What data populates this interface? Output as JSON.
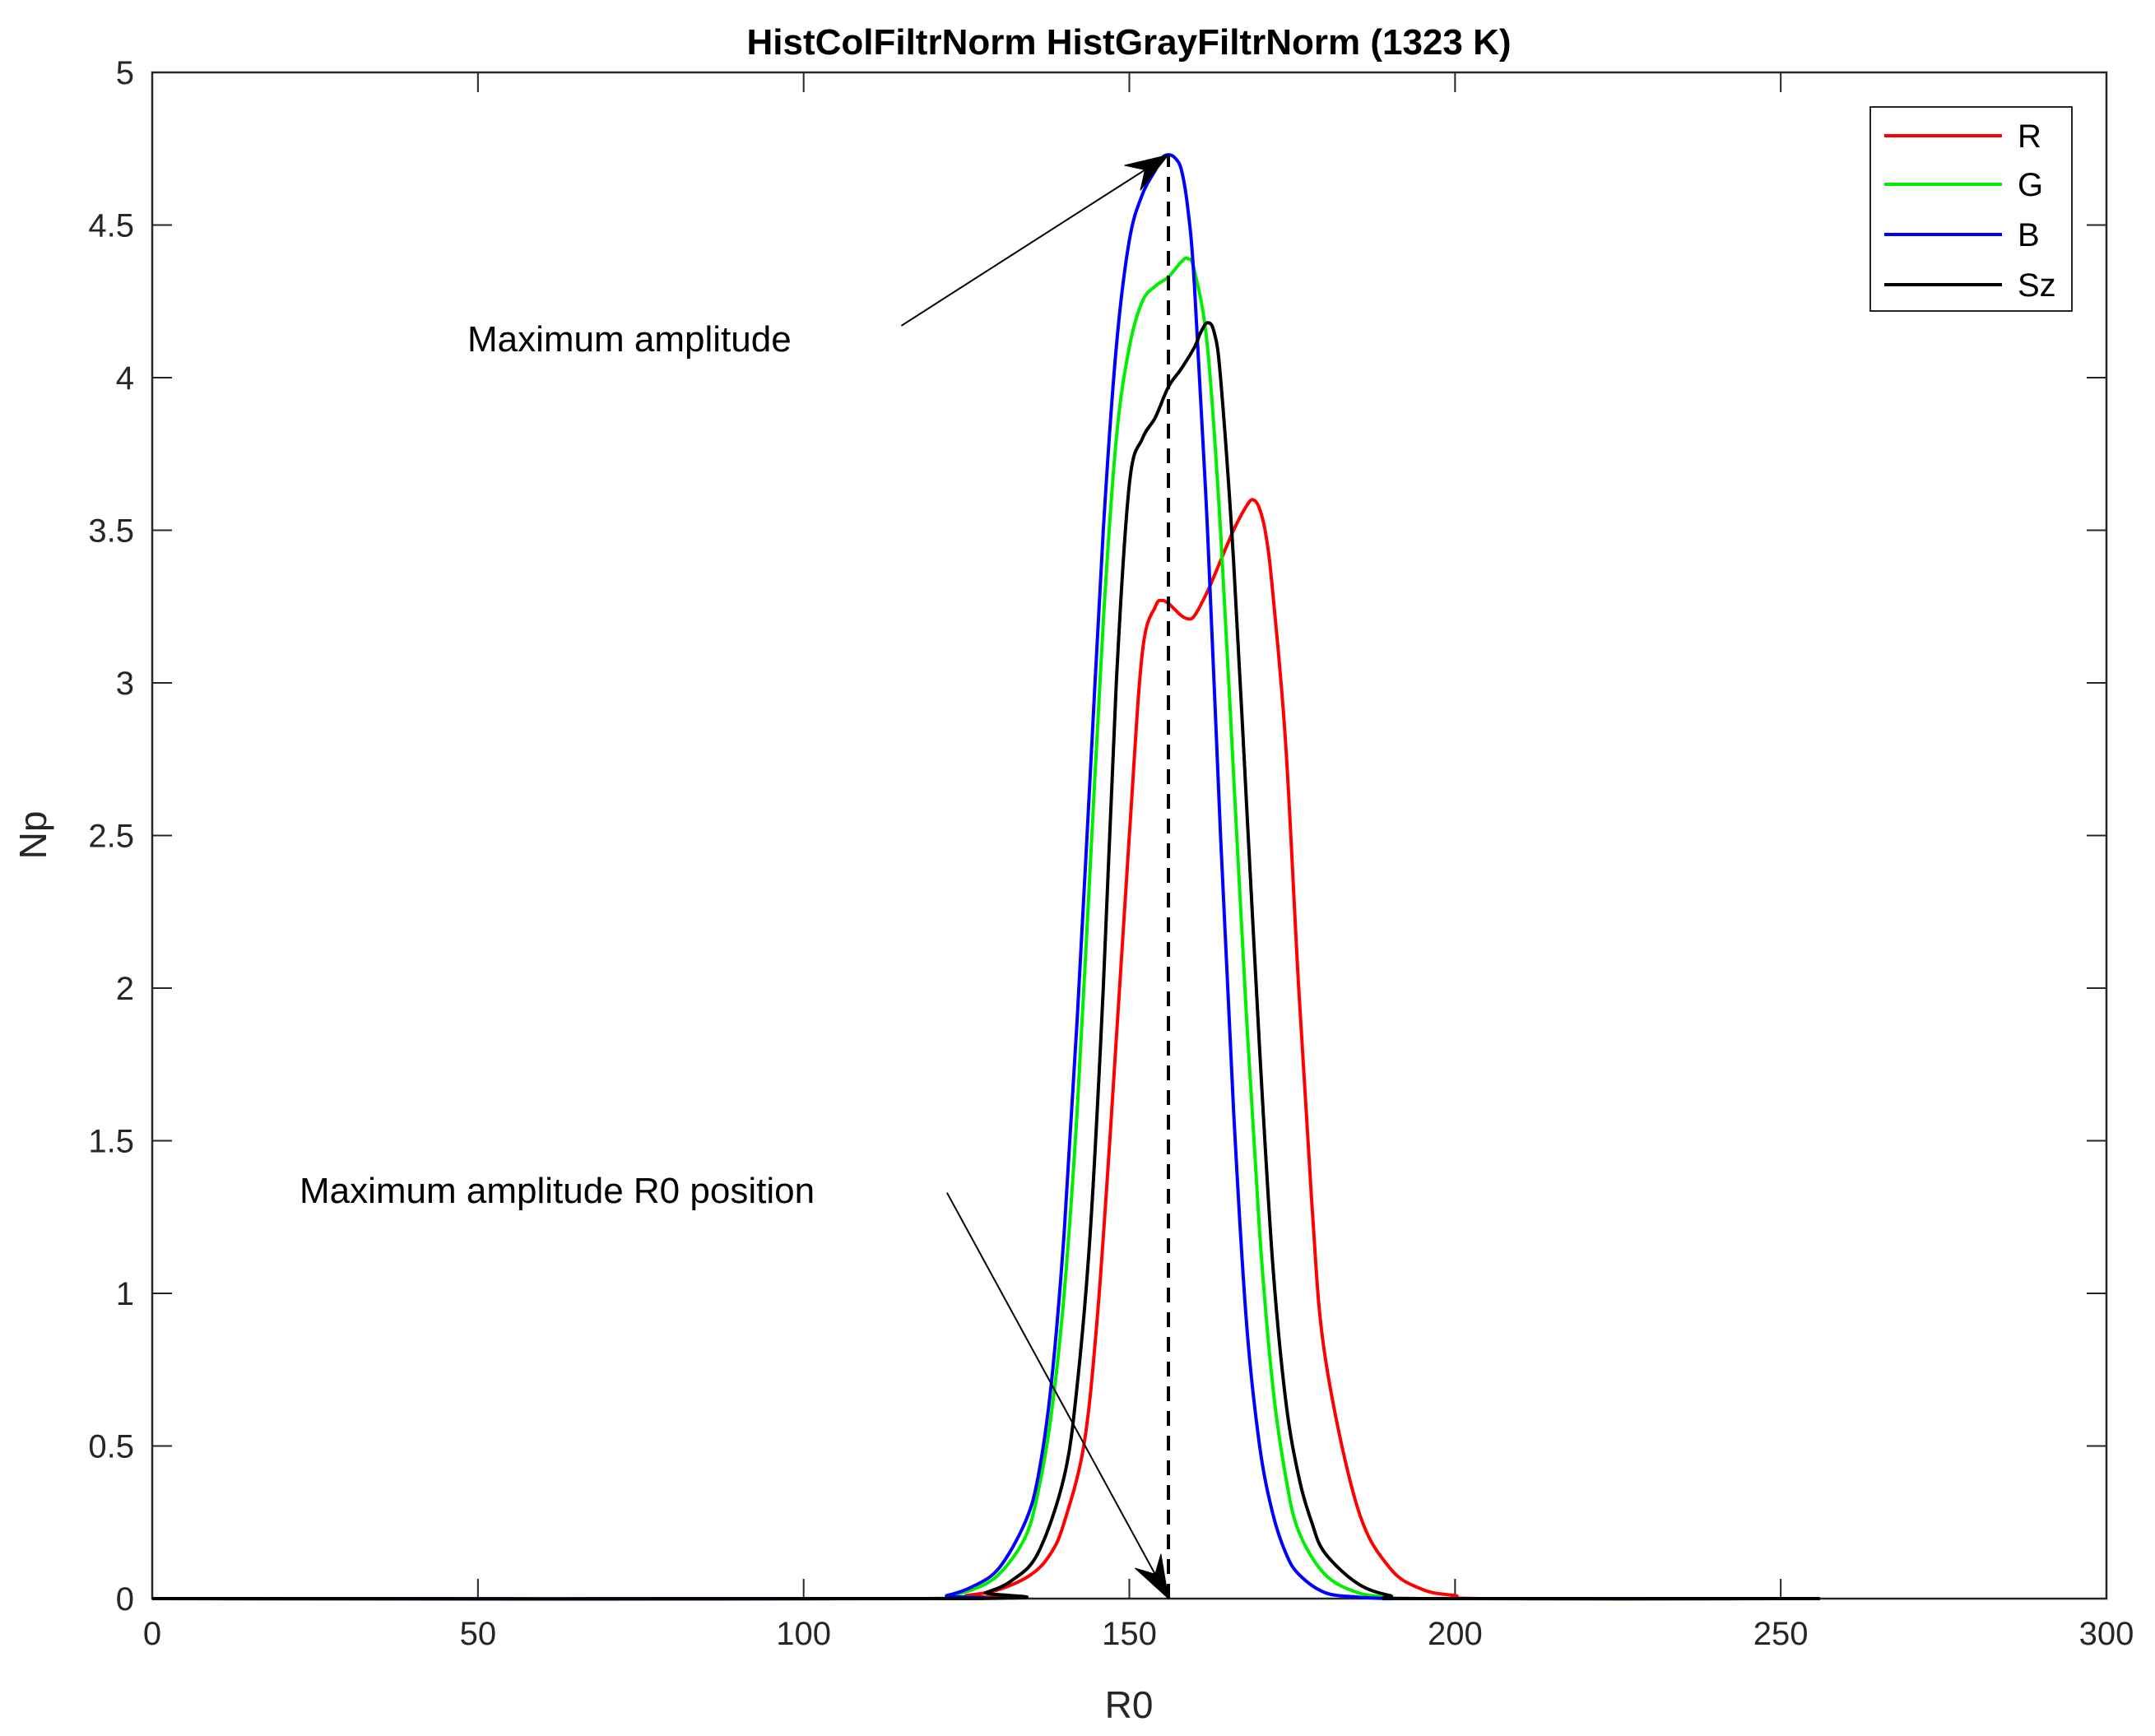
{
  "chart_data": {
    "type": "line",
    "title": "HistColFiltrNorm  HistGrayFiltrNorm (1323 K)",
    "xlabel": "R0",
    "ylabel": "Np",
    "xlim": [
      0,
      300
    ],
    "ylim": [
      0,
      5
    ],
    "xticks": [
      "0",
      "50",
      "100",
      "150",
      "200",
      "250",
      "300"
    ],
    "yticks": [
      "0",
      "0.5",
      "1",
      "1.5",
      "2",
      "2.5",
      "3",
      "3.5",
      "4",
      "4.5",
      "5"
    ],
    "grid": false,
    "legend_position": "top-right",
    "series": [
      {
        "name": "R",
        "color": "#ff0000",
        "x": [
          0,
          120,
          125,
          130,
          135,
          138,
          140,
          143,
          145,
          147,
          150,
          152,
          154,
          155,
          156,
          157,
          158,
          159,
          160,
          162,
          164,
          166,
          168,
          169,
          170,
          171,
          172,
          174,
          176,
          178,
          180,
          185,
          190,
          195,
          200,
          205,
          256
        ],
        "y": [
          0,
          0,
          0.01,
          0.03,
          0.08,
          0.15,
          0.25,
          0.5,
          0.9,
          1.5,
          2.5,
          3.1,
          3.25,
          3.27,
          3.26,
          3.24,
          3.22,
          3.21,
          3.22,
          3.3,
          3.4,
          3.5,
          3.58,
          3.6,
          3.57,
          3.48,
          3.3,
          2.8,
          2.0,
          1.3,
          0.8,
          0.3,
          0.1,
          0.03,
          0.01,
          0,
          0
        ]
      },
      {
        "name": "G",
        "color": "#00ee00",
        "x": [
          0,
          118,
          122,
          126,
          130,
          134,
          136,
          138,
          140,
          142,
          144,
          146,
          148,
          150,
          152,
          154,
          156,
          158,
          159,
          160,
          162,
          164,
          166,
          168,
          170,
          172,
          174,
          176,
          180,
          185,
          190,
          195,
          256
        ],
        "y": [
          0,
          0,
          0.01,
          0.03,
          0.08,
          0.2,
          0.35,
          0.6,
          1.0,
          1.6,
          2.4,
          3.2,
          3.8,
          4.1,
          4.25,
          4.3,
          4.33,
          4.38,
          4.39,
          4.35,
          4.1,
          3.5,
          2.7,
          1.9,
          1.2,
          0.7,
          0.4,
          0.22,
          0.08,
          0.02,
          0.005,
          0,
          0
        ]
      },
      {
        "name": "B",
        "color": "#0000ff",
        "x": [
          0,
          118,
          122,
          126,
          130,
          134,
          136,
          138,
          140,
          142,
          144,
          146,
          148,
          150,
          152,
          154,
          155,
          156,
          157,
          158,
          159,
          160,
          162,
          164,
          166,
          168,
          170,
          172,
          174,
          176,
          180,
          185,
          190,
          195,
          256
        ],
        "y": [
          0,
          0,
          0.01,
          0.04,
          0.1,
          0.25,
          0.4,
          0.7,
          1.2,
          1.9,
          2.7,
          3.5,
          4.1,
          4.45,
          4.6,
          4.68,
          4.72,
          4.73,
          4.72,
          4.68,
          4.55,
          4.3,
          3.5,
          2.5,
          1.6,
          0.9,
          0.5,
          0.28,
          0.15,
          0.08,
          0.02,
          0.005,
          0,
          0,
          0
        ]
      },
      {
        "name": "Sz",
        "color": "#000000",
        "x": [
          0,
          124,
          128,
          132,
          136,
          140,
          142,
          144,
          146,
          148,
          150,
          152,
          154,
          156,
          158,
          160,
          161,
          162,
          163,
          164,
          166,
          168,
          170,
          172,
          174,
          176,
          178,
          180,
          185,
          190,
          195,
          256
        ],
        "y": [
          0,
          0,
          0.02,
          0.06,
          0.15,
          0.4,
          0.7,
          1.2,
          2.0,
          3.0,
          3.65,
          3.8,
          3.87,
          3.97,
          4.03,
          4.1,
          4.15,
          4.18,
          4.15,
          4.0,
          3.4,
          2.6,
          1.8,
          1.1,
          0.65,
          0.4,
          0.25,
          0.15,
          0.05,
          0.01,
          0,
          0
        ]
      }
    ],
    "annotations": [
      {
        "text": "Maximum amplitude",
        "x": 31,
        "y": 4.1,
        "arrow_from": [
          115,
          4.17
        ],
        "arrow_to": [
          156,
          4.73
        ]
      },
      {
        "text": "Maximum amplitude R0 position",
        "x": 23.5,
        "y": 1.34,
        "arrow_from": [
          122,
          1.33
        ],
        "arrow_to": [
          156,
          0
        ]
      }
    ],
    "vertical_line": {
      "x": 156,
      "y_from": 0,
      "y_to": 4.73,
      "style": "dashed"
    }
  }
}
